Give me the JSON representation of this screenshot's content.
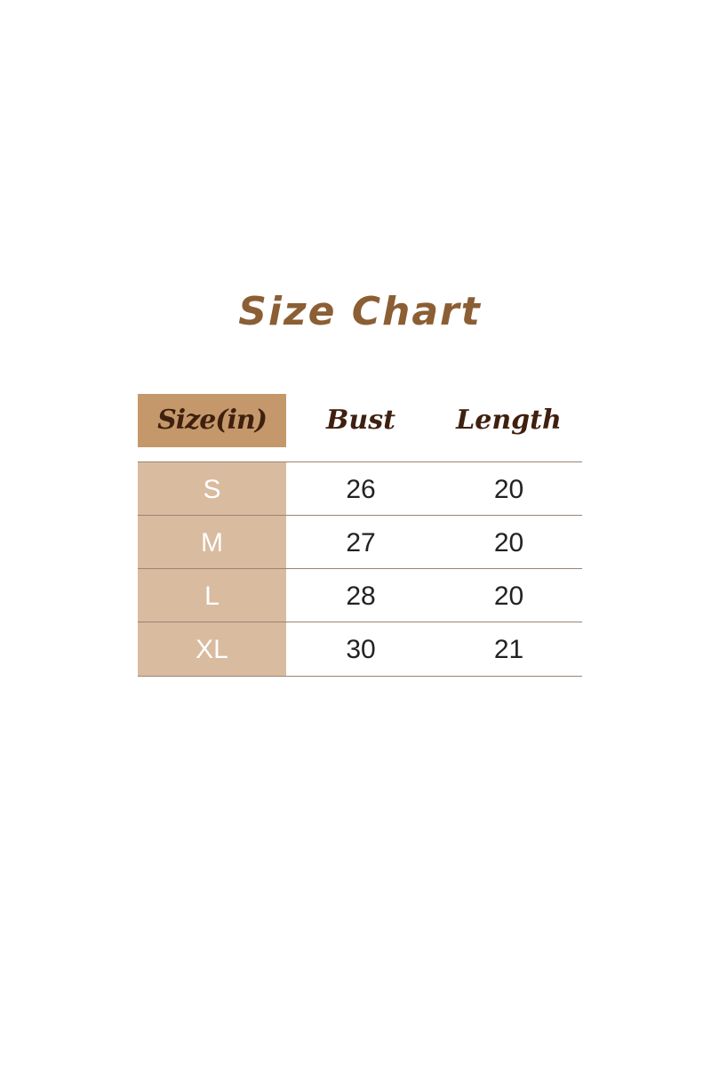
{
  "title": "Size Chart",
  "headers": [
    "Size(in)",
    "Bust",
    "Length"
  ],
  "rows": [
    [
      "S",
      "26",
      "20"
    ],
    [
      "M",
      "27",
      "20"
    ],
    [
      "L",
      "28",
      "20"
    ],
    [
      "XL",
      "30",
      "21"
    ]
  ],
  "colors": {
    "title": "#8b5e34",
    "header_cell": "#c4986a",
    "size_column": "#d9bb9f",
    "header_text": "#3f200f"
  }
}
